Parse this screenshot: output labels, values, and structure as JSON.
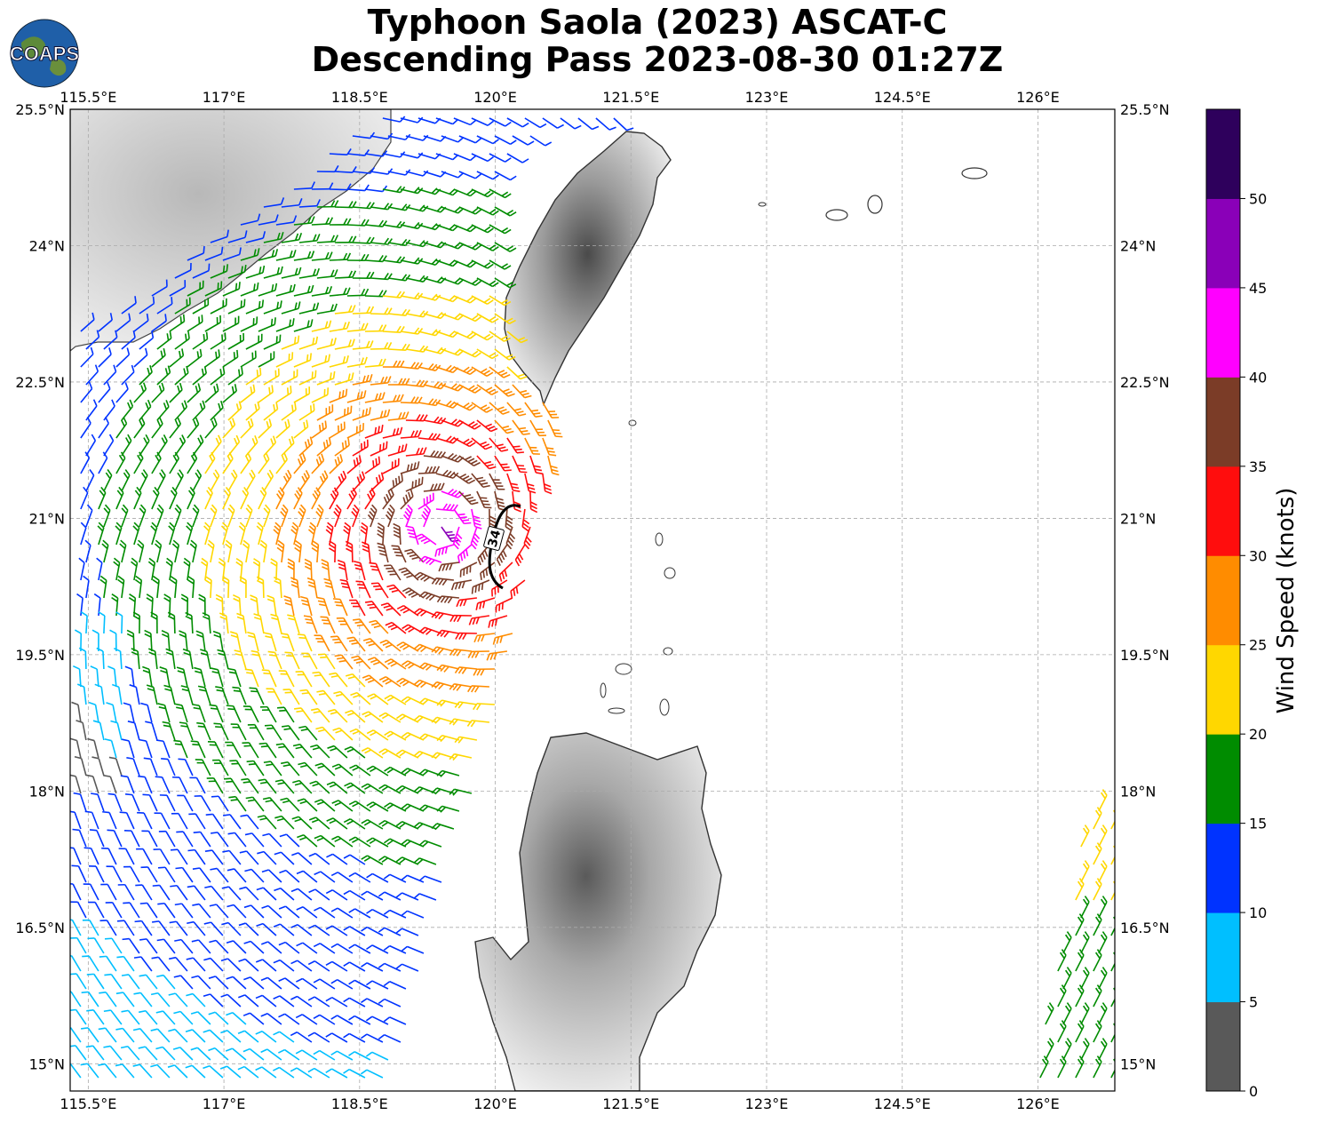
{
  "title": {
    "line1": "Typhoon Saola (2023) ASCAT-C",
    "line2": "Descending Pass 2023-08-30 01:27Z"
  },
  "logo": {
    "text": "COAPS",
    "icon": "globe-logo-icon"
  },
  "map": {
    "lon_ticks": [
      "115.5°E",
      "117°E",
      "118.5°E",
      "120°E",
      "121.5°E",
      "123°E",
      "124.5°E",
      "126°E"
    ],
    "lat_ticks": [
      "25.5°N",
      "24°N",
      "22.5°N",
      "21°N",
      "19.5°N",
      "18°N",
      "16.5°N",
      "15°N"
    ],
    "lon_range": [
      115.3,
      126.85
    ],
    "lat_range": [
      14.7,
      25.5
    ],
    "gridlines": true,
    "wind_radius_label": "34"
  },
  "colorbar": {
    "label": "Wind Speed (knots)",
    "ticks": [
      "0",
      "5",
      "10",
      "15",
      "20",
      "25",
      "30",
      "35",
      "40",
      "45",
      "50"
    ],
    "colors": [
      "#595959",
      "#00bfff",
      "#0033ff",
      "#008c00",
      "#ffd700",
      "#ff8c00",
      "#ff0d0d",
      "#7b3c27",
      "#ff00ff",
      "#8a00b8",
      "#2e005c"
    ]
  },
  "storm_center": {
    "lon": 119.4,
    "lat": 20.9
  }
}
